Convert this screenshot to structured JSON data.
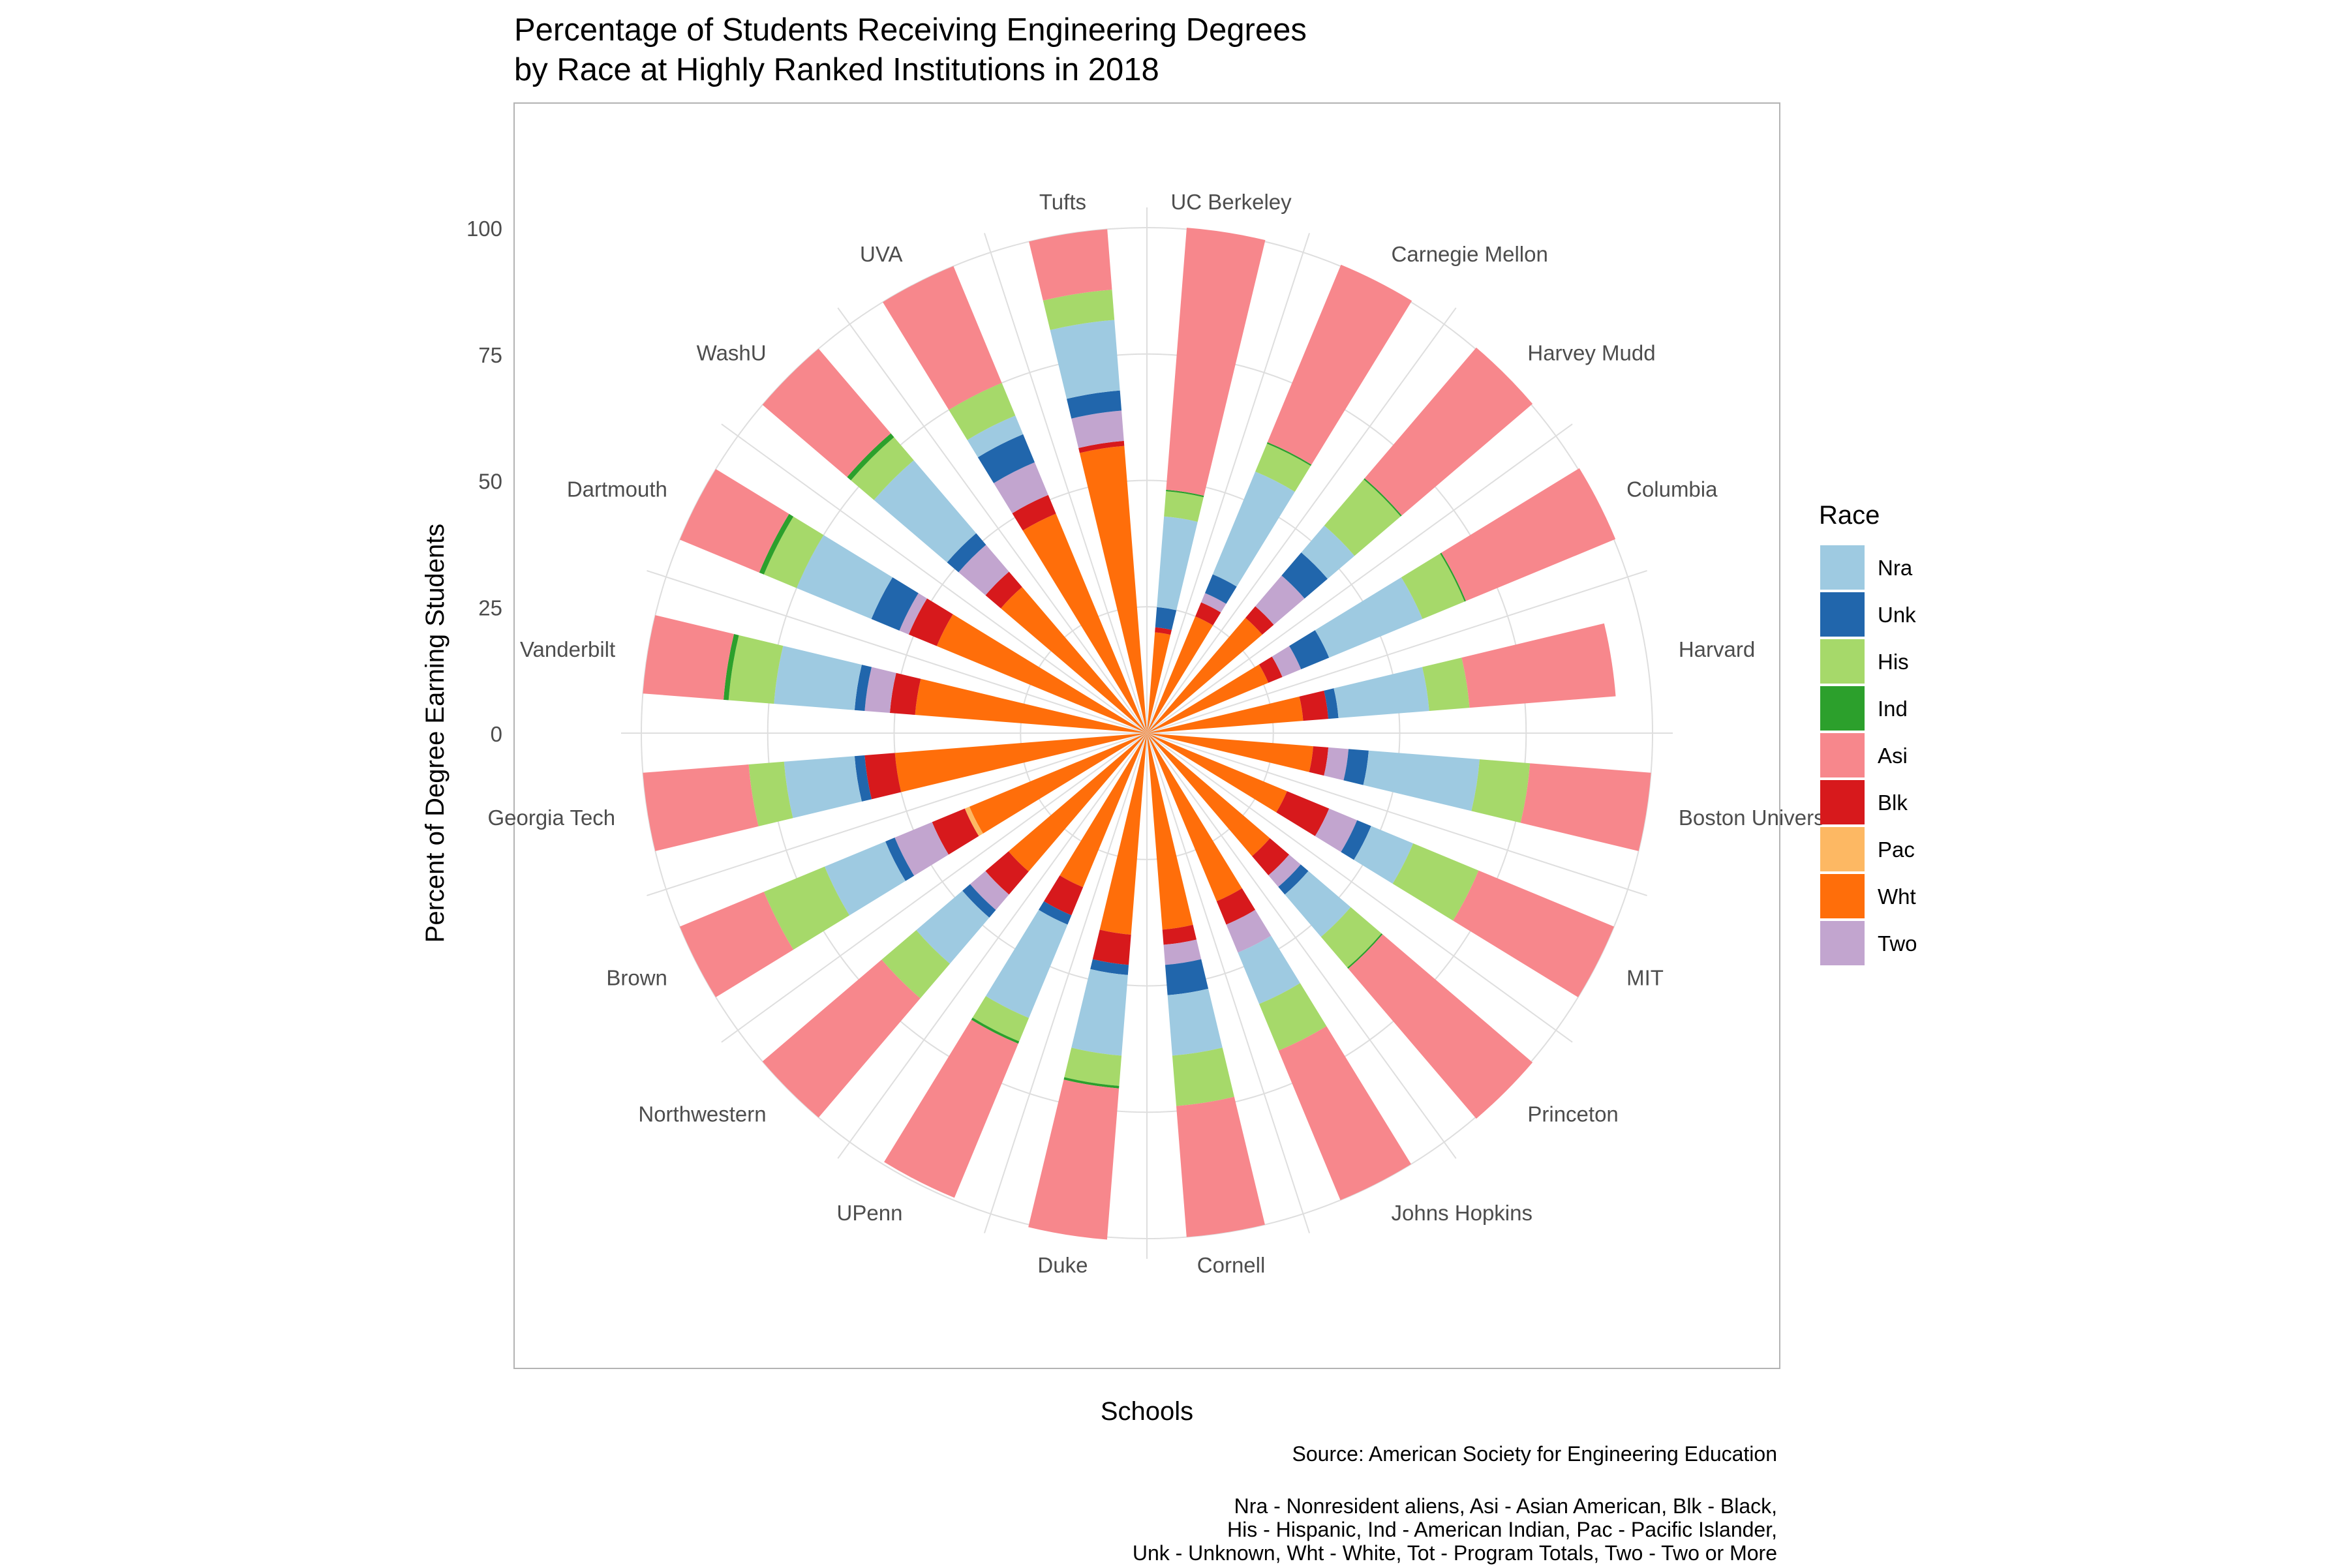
{
  "chart_data": {
    "type": "bar",
    "subtype": "polar-stacked",
    "title_lines": [
      "Percentage of Students Receiving Engineering Degrees",
      "by Race at Highly Ranked Institutions in 2018"
    ],
    "xlabel": "Schools",
    "ylabel": "Percent of Degree Earning Students",
    "ylim": [
      0,
      100
    ],
    "yticks": [
      "0",
      "25",
      "50",
      "75",
      "100"
    ],
    "legend": {
      "title": "Race",
      "position": "right"
    },
    "caption_lines": [
      "Source: American Society for Engineering Education",
      "",
      "Nra - Nonresident aliens, Asi - Asian American, Blk - Black,",
      "His - Hispanic, Ind - American Indian, Pac - Pacific Islander,",
      "Unk - Unknown, Wht - White, Tot - Program Totals, Two - Two or More"
    ],
    "series": [
      {
        "name": "Nra",
        "color": "#9ECAE1"
      },
      {
        "name": "Unk",
        "color": "#2166AC"
      },
      {
        "name": "His",
        "color": "#A6D96A"
      },
      {
        "name": "Ind",
        "color": "#2CA02C"
      },
      {
        "name": "Asi",
        "color": "#F7878C"
      },
      {
        "name": "Blk",
        "color": "#D7191C"
      },
      {
        "name": "Pac",
        "color": "#FDB863"
      },
      {
        "name": "Wht",
        "color": "#FF6E0A"
      },
      {
        "name": "Two",
        "color": "#C2A5CF"
      }
    ],
    "categories": [
      "UC Berkeley",
      "Carnegie Mellon",
      "Harvey Mudd",
      "Columbia",
      "Harvard",
      "Boston Univers",
      "MIT",
      "Princeton",
      "Johns Hopkins",
      "Cornell",
      "Duke",
      "UPenn",
      "Northwestern",
      "Brown",
      "Georgia Tech",
      "Vanderbilt",
      "Dartmouth",
      "WashU",
      "UVA",
      "Tufts"
    ],
    "stack_order": [
      "Wht",
      "Pac",
      "Blk",
      "Two",
      "Unk",
      "Nra",
      "His",
      "Ind",
      "Asi"
    ],
    "values": {
      "UC Berkeley": {
        "Wht": 20,
        "Pac": 0,
        "Blk": 1,
        "Two": 0,
        "Unk": 4,
        "Nra": 18,
        "His": 5,
        "Ind": 0.3,
        "Asi": 52
      },
      "Carnegie Mellon": {
        "Wht": 25,
        "Pac": 0,
        "Blk": 3,
        "Two": 2,
        "Unk": 4,
        "Nra": 22,
        "His": 6,
        "Ind": 0.3,
        "Asi": 38
      },
      "Harvey Mudd": {
        "Wht": 30,
        "Pac": 0,
        "Blk": 3,
        "Two": 8,
        "Unk": 6,
        "Nra": 7,
        "His": 12,
        "Ind": 0.3,
        "Asi": 34
      },
      "Columbia": {
        "Wht": 26,
        "Pac": 0,
        "Blk": 3,
        "Two": 4,
        "Unk": 6,
        "Nra": 20,
        "His": 9,
        "Ind": 0.3,
        "Asi": 32
      },
      "Harvard": {
        "Wht": 31,
        "Pac": 0,
        "Blk": 5,
        "Two": 0,
        "Unk": 2,
        "Nra": 18,
        "His": 8,
        "Ind": 0,
        "Asi": 29
      },
      "Boston Univers": {
        "Wht": 33,
        "Pac": 0,
        "Blk": 3,
        "Two": 4,
        "Unk": 4,
        "Nra": 22,
        "His": 10,
        "Ind": 0,
        "Asi": 24
      },
      "MIT": {
        "Wht": 30,
        "Pac": 0,
        "Blk": 9,
        "Two": 6,
        "Unk": 3,
        "Nra": 9,
        "His": 14,
        "Ind": 0,
        "Asi": 29
      },
      "Princeton": {
        "Wht": 32,
        "Pac": 0,
        "Blk": 5,
        "Two": 3,
        "Unk": 2,
        "Nra": 11,
        "His": 8,
        "Ind": 0.3,
        "Asi": 39
      },
      "Johns Hopkins": {
        "Wht": 36,
        "Pac": 0,
        "Blk": 5,
        "Two": 6,
        "Unk": 0,
        "Nra": 11,
        "His": 10,
        "Ind": 0,
        "Asi": 32
      },
      "Cornell": {
        "Wht": 39,
        "Pac": 0,
        "Blk": 3,
        "Two": 4,
        "Unk": 6,
        "Nra": 12,
        "His": 10,
        "Ind": 0,
        "Asi": 26
      },
      "Duke": {
        "Wht": 40,
        "Pac": 0,
        "Blk": 6,
        "Two": 0,
        "Unk": 2,
        "Nra": 16,
        "His": 6,
        "Ind": 0.5,
        "Asi": 30
      },
      "UPenn": {
        "Wht": 33,
        "Pac": 0,
        "Blk": 6,
        "Two": 0,
        "Unk": 2,
        "Nra": 20,
        "His": 5,
        "Ind": 0.5,
        "Asi": 33
      },
      "Northwestern": {
        "Wht": 36,
        "Pac": 0,
        "Blk": 6,
        "Two": 4,
        "Unk": 2,
        "Nra": 12,
        "His": 9,
        "Ind": 0,
        "Asi": 31
      },
      "Brown": {
        "Wht": 38,
        "Pac": 1,
        "Blk": 7,
        "Two": 8,
        "Unk": 2,
        "Nra": 13,
        "His": 13,
        "Ind": 0,
        "Asi": 18
      },
      "Georgia Tech": {
        "Wht": 50,
        "Pac": 0,
        "Blk": 6,
        "Two": 0,
        "Unk": 2,
        "Nra": 14,
        "His": 7,
        "Ind": 0,
        "Asi": 21
      },
      "Vanderbilt": {
        "Wht": 46,
        "Pac": 0,
        "Blk": 5,
        "Two": 5,
        "Unk": 2,
        "Nra": 16,
        "His": 9,
        "Ind": 1,
        "Asi": 16
      },
      "Dartmouth": {
        "Wht": 45,
        "Pac": 0,
        "Blk": 6,
        "Two": 2,
        "Unk": 6,
        "Nra": 16,
        "His": 7,
        "Ind": 1,
        "Asi": 17
      },
      "WashU": {
        "Wht": 38,
        "Pac": 0,
        "Blk": 4,
        "Two": 7,
        "Unk": 3,
        "Nra": 19,
        "His": 6,
        "Ind": 1,
        "Asi": 22
      },
      "UVA": {
        "Wht": 47,
        "Pac": 0,
        "Blk": 4,
        "Two": 7,
        "Unk": 6,
        "Nra": 4,
        "His": 7,
        "Ind": 0,
        "Asi": 25
      },
      "Tufts": {
        "Wht": 57,
        "Pac": 0,
        "Blk": 1,
        "Two": 6,
        "Unk": 4,
        "Nra": 14,
        "His": 6,
        "Ind": 0,
        "Asi": 12
      }
    }
  }
}
